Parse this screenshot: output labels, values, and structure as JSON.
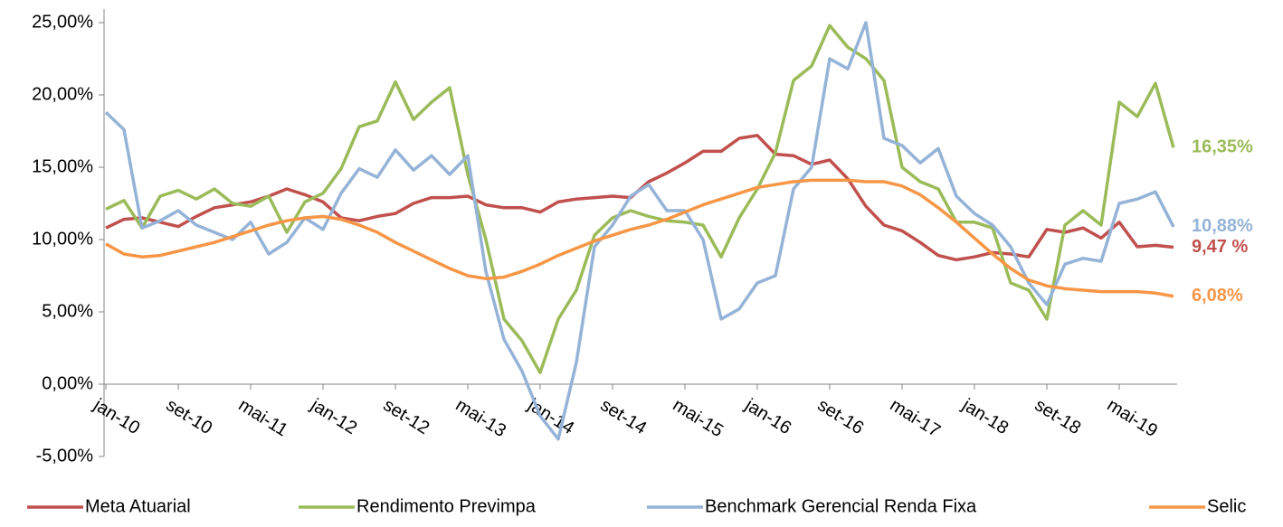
{
  "chart_data": {
    "type": "line",
    "categories": [
      "jan-10",
      null,
      null,
      null,
      "set-10",
      null,
      null,
      null,
      "mai-11",
      null,
      null,
      null,
      "jan-12",
      null,
      null,
      null,
      "set-12",
      null,
      null,
      null,
      "mai-13",
      null,
      null,
      null,
      "jan-14",
      null,
      null,
      null,
      "set-14",
      null,
      null,
      null,
      "mai-15",
      null,
      null,
      null,
      "jan-16",
      null,
      null,
      null,
      "set-16",
      null,
      null,
      null,
      "mai-17",
      null,
      null,
      null,
      "jan-18",
      null,
      null,
      null,
      "set-18",
      null,
      null,
      null,
      "mai-19",
      null,
      null,
      null
    ],
    "series": [
      {
        "name": "Meta Atuarial",
        "color": "#c0504d",
        "values": [
          10.8,
          11.4,
          11.5,
          11.2,
          10.9,
          11.6,
          12.2,
          12.4,
          12.6,
          13.0,
          13.5,
          13.1,
          12.6,
          11.5,
          11.3,
          11.6,
          11.8,
          12.5,
          12.9,
          12.9,
          13.0,
          12.4,
          12.2,
          12.2,
          11.9,
          12.6,
          12.8,
          12.9,
          13.0,
          12.9,
          14.0,
          14.6,
          15.3,
          16.1,
          16.1,
          17.0,
          17.2,
          15.9,
          15.8,
          15.2,
          15.5,
          14.2,
          12.3,
          11.0,
          10.6,
          9.8,
          8.9,
          8.6,
          8.8,
          9.1,
          9.0,
          8.8,
          10.7,
          10.5,
          10.8,
          10.1,
          11.2,
          9.5,
          9.6,
          9.47
        ],
        "value_labels": [
          null,
          null,
          null,
          null,
          null,
          null,
          null,
          null,
          null,
          null,
          null,
          null,
          null,
          null,
          null,
          null,
          null,
          null,
          null,
          null,
          null,
          null,
          null,
          null,
          null,
          null,
          null,
          null,
          null,
          null,
          null,
          null,
          null,
          null,
          null,
          null,
          null,
          null,
          null,
          null,
          null,
          null,
          null,
          null,
          null,
          null,
          null,
          null,
          null,
          null,
          null,
          null,
          null,
          null,
          null,
          null,
          null,
          null,
          null,
          "9,47 %"
        ]
      },
      {
        "name": "Rendimento Previmpa",
        "color": "#9bbb59",
        "values": [
          12.1,
          12.7,
          10.8,
          13.0,
          13.4,
          12.8,
          13.5,
          12.5,
          12.3,
          13.0,
          10.5,
          12.6,
          13.2,
          14.9,
          17.8,
          18.2,
          20.9,
          18.3,
          19.5,
          20.5,
          14.5,
          10.0,
          4.5,
          3.0,
          0.8,
          4.5,
          6.5,
          10.3,
          11.5,
          12.0,
          11.6,
          11.3,
          11.2,
          11.0,
          8.8,
          11.5,
          13.5,
          16.0,
          21.0,
          22.0,
          24.8,
          23.3,
          22.5,
          21.0,
          15.0,
          14.0,
          13.5,
          11.2,
          11.2,
          10.8,
          7.0,
          6.5,
          4.5,
          11.0,
          12.0,
          11.0,
          19.5,
          18.5,
          20.8,
          16.35
        ],
        "value_labels": [
          null,
          null,
          null,
          null,
          null,
          null,
          null,
          null,
          null,
          null,
          null,
          null,
          null,
          null,
          null,
          null,
          null,
          null,
          null,
          null,
          null,
          null,
          null,
          null,
          null,
          null,
          null,
          null,
          null,
          null,
          null,
          null,
          null,
          null,
          null,
          null,
          null,
          null,
          null,
          null,
          null,
          null,
          null,
          null,
          null,
          null,
          null,
          null,
          null,
          null,
          null,
          null,
          null,
          null,
          null,
          null,
          null,
          null,
          null,
          "16,35%"
        ]
      },
      {
        "name": "Benchmark Gerencial Renda Fixa",
        "color": "#95b3d7",
        "values": [
          18.8,
          17.6,
          10.8,
          11.3,
          12.0,
          11.0,
          10.5,
          10.0,
          11.2,
          9.0,
          9.8,
          11.5,
          10.7,
          13.2,
          14.9,
          14.3,
          16.2,
          14.8,
          15.8,
          14.5,
          15.8,
          7.8,
          3.1,
          0.9,
          -2.2,
          -3.8,
          1.5,
          9.5,
          11.0,
          13.0,
          13.8,
          12.0,
          12.0,
          10.0,
          4.5,
          5.2,
          7.0,
          7.5,
          13.5,
          15.0,
          22.5,
          21.8,
          25.0,
          17.0,
          16.5,
          15.3,
          16.3,
          13.0,
          11.8,
          11.0,
          9.5,
          7.0,
          5.5,
          8.3,
          8.7,
          8.5,
          12.5,
          12.8,
          13.3,
          10.88
        ],
        "value_labels": [
          null,
          null,
          null,
          null,
          null,
          null,
          null,
          null,
          null,
          null,
          null,
          null,
          null,
          null,
          null,
          null,
          null,
          null,
          null,
          null,
          null,
          null,
          null,
          null,
          null,
          null,
          null,
          null,
          null,
          null,
          null,
          null,
          null,
          null,
          null,
          null,
          null,
          null,
          null,
          null,
          null,
          null,
          null,
          null,
          null,
          null,
          null,
          null,
          null,
          null,
          null,
          null,
          null,
          null,
          null,
          null,
          null,
          null,
          null,
          "10,88%"
        ]
      },
      {
        "name": "Selic",
        "color": "#f79646",
        "values": [
          9.7,
          9.0,
          8.8,
          8.9,
          9.2,
          9.5,
          9.8,
          10.2,
          10.6,
          11.0,
          11.3,
          11.5,
          11.6,
          11.4,
          11.0,
          10.5,
          9.8,
          9.2,
          8.6,
          8.0,
          7.5,
          7.3,
          7.4,
          7.8,
          8.3,
          8.9,
          9.4,
          9.9,
          10.3,
          10.7,
          11.0,
          11.4,
          11.9,
          12.4,
          12.8,
          13.2,
          13.6,
          13.8,
          14.0,
          14.1,
          14.1,
          14.1,
          14.0,
          14.0,
          13.7,
          13.1,
          12.2,
          11.2,
          10.1,
          9.0,
          8.0,
          7.2,
          6.8,
          6.6,
          6.5,
          6.4,
          6.4,
          6.4,
          6.3,
          6.08
        ],
        "value_labels": [
          null,
          null,
          null,
          null,
          null,
          null,
          null,
          null,
          null,
          null,
          null,
          null,
          null,
          null,
          null,
          null,
          null,
          null,
          null,
          null,
          null,
          null,
          null,
          null,
          null,
          null,
          null,
          null,
          null,
          null,
          null,
          null,
          null,
          null,
          null,
          null,
          null,
          null,
          null,
          null,
          null,
          null,
          null,
          null,
          null,
          null,
          null,
          null,
          null,
          null,
          null,
          null,
          null,
          null,
          null,
          null,
          null,
          null,
          null,
          "6,08%"
        ]
      }
    ],
    "ylim": [
      -5,
      25
    ],
    "yticks": [
      {
        "value": -5,
        "label": "-5,00%"
      },
      {
        "value": 0,
        "label": "0,00%"
      },
      {
        "value": 5,
        "label": "5,00%"
      },
      {
        "value": 10,
        "label": "10,00%"
      },
      {
        "value": 15,
        "label": "15,00%"
      },
      {
        "value": 20,
        "label": "20,00%"
      },
      {
        "value": 25,
        "label": "25,00%"
      }
    ],
    "grid": false,
    "legend": "bottom"
  }
}
